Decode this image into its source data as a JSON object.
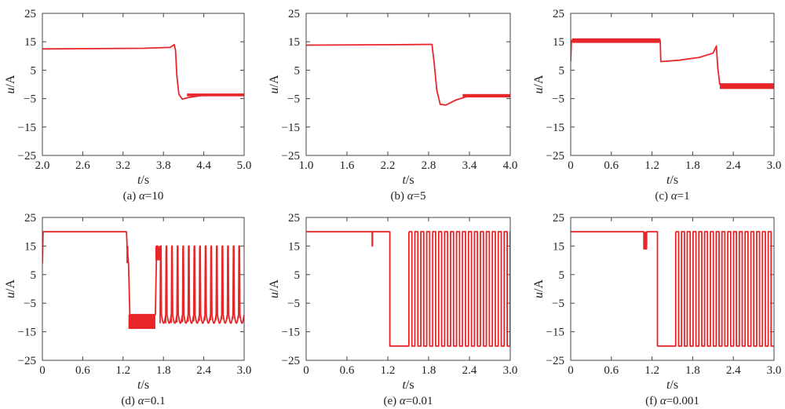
{
  "chart_data": [
    {
      "type": "line",
      "caption_prefix": "(a) ",
      "caption_greek": "α",
      "caption_suffix": "=10",
      "xlabel_var": "t",
      "xlabel_unit": "/s",
      "ylabel_var": "u",
      "ylabel_unit": "/A",
      "xlim": [
        2.0,
        5.0
      ],
      "ylim": [
        -25,
        25
      ],
      "xticks": [
        "2.0",
        "2.6",
        "3.2",
        "3.8",
        "4.4",
        "5.0"
      ],
      "yticks": [
        "25",
        "15",
        "5",
        "−5",
        "−15",
        "−25"
      ],
      "series_color": "#e8262a",
      "series": [
        {
          "x": [
            2.0,
            3.5,
            3.9,
            3.96,
            3.98,
            4.0,
            4.03,
            4.08,
            4.2,
            4.4,
            4.6,
            5.0
          ],
          "y": [
            12.5,
            12.7,
            13.0,
            14.0,
            12.0,
            3.0,
            -3.5,
            -5.2,
            -4.5,
            -3.8,
            -3.7,
            -3.6
          ]
        }
      ],
      "bands": [
        {
          "x0": 4.15,
          "x1": 5.0,
          "y0": -4.2,
          "y1": -3.2
        }
      ]
    },
    {
      "type": "line",
      "caption_prefix": "(b) ",
      "caption_greek": "α",
      "caption_suffix": "=5",
      "xlabel_var": "t",
      "xlabel_unit": "/s",
      "ylabel_var": "u",
      "ylabel_unit": "/A",
      "xlim": [
        1.0,
        4.0
      ],
      "ylim": [
        -25,
        25
      ],
      "xticks": [
        "1.0",
        "1.6",
        "2.2",
        "2.8",
        "3.4",
        "4.0"
      ],
      "yticks": [
        "25",
        "15",
        "5",
        "−5",
        "−15",
        "−25"
      ],
      "series_color": "#e8262a",
      "series": [
        {
          "x": [
            1.0,
            2.5,
            2.85,
            2.88,
            2.92,
            2.97,
            3.05,
            3.2,
            3.4,
            4.0
          ],
          "y": [
            13.8,
            14.0,
            14.1,
            8.0,
            -2.0,
            -7.0,
            -7.3,
            -5.5,
            -4.0,
            -4.0
          ]
        }
      ],
      "bands": [
        {
          "x0": 3.3,
          "x1": 4.0,
          "y0": -4.6,
          "y1": -3.4
        }
      ]
    },
    {
      "type": "line",
      "caption_prefix": "(c) ",
      "caption_greek": "α",
      "caption_suffix": "=1",
      "xlabel_var": "t",
      "xlabel_unit": "/s",
      "ylabel_var": "u",
      "ylabel_unit": "/A",
      "xlim": [
        0,
        3.0
      ],
      "ylim": [
        -25,
        25
      ],
      "xticks": [
        "0",
        "0.6",
        "1.2",
        "1.8",
        "2.4",
        "3.0"
      ],
      "yticks": [
        "25",
        "15",
        "5",
        "−5",
        "−15",
        "−25"
      ],
      "series_color": "#e8262a",
      "series": [
        {
          "x": [
            0,
            0.01,
            0.02,
            1.32,
            1.33,
            1.6,
            1.9,
            2.1,
            2.15,
            2.17,
            2.2,
            2.3,
            3.0
          ],
          "y": [
            8,
            15.5,
            15.5,
            15.5,
            8,
            8.5,
            9.5,
            11,
            13.5,
            6,
            0,
            -0.8,
            -0.8
          ]
        }
      ],
      "bands": [
        {
          "x0": 0.02,
          "x1": 1.32,
          "y0": 14.6,
          "y1": 16.2
        },
        {
          "x0": 2.2,
          "x1": 3.0,
          "y0": -1.6,
          "y1": 0.4
        }
      ]
    },
    {
      "type": "line",
      "caption_prefix": "(d) ",
      "caption_greek": "α",
      "caption_suffix": "=0.1",
      "xlabel_var": "t",
      "xlabel_unit": "/s",
      "ylabel_var": "u",
      "ylabel_unit": "/A",
      "xlim": [
        0,
        3.0
      ],
      "ylim": [
        -25,
        25
      ],
      "xticks": [
        "0",
        "0.6",
        "1.2",
        "1.8",
        "2.4",
        "3.0"
      ],
      "yticks": [
        "25",
        "15",
        "5",
        "−5",
        "−15",
        "−25"
      ],
      "series_color": "#e8262a",
      "series": [
        {
          "x": [
            0,
            0.01,
            1.25,
            1.26,
            1.28,
            1.3,
            1.68,
            1.7,
            1.72
          ],
          "y": [
            9,
            20,
            20,
            15,
            9,
            -9,
            -9,
            15,
            15
          ]
        }
      ],
      "bands": [
        {
          "x0": 1.25,
          "x1": 1.28,
          "y0": 9,
          "y1": 15
        },
        {
          "x0": 1.28,
          "x1": 1.68,
          "y0": -14,
          "y1": -9
        },
        {
          "x0": 1.68,
          "x1": 1.75,
          "y0": 10,
          "y1": 15
        }
      ],
      "osc": {
        "x0": 1.75,
        "x1": 3.0,
        "period": 0.0833,
        "hi": 15,
        "lo": -12
      }
    },
    {
      "type": "line",
      "caption_prefix": "(e) ",
      "caption_greek": "α",
      "caption_suffix": "=0.01",
      "xlabel_var": "t",
      "xlabel_unit": "/s",
      "ylabel_var": "u",
      "ylabel_unit": "/A",
      "xlim": [
        0,
        3.0
      ],
      "ylim": [
        -25,
        25
      ],
      "xticks": [
        "0",
        "0.6",
        "1.2",
        "1.8",
        "2.4",
        "3.0"
      ],
      "yticks": [
        "25",
        "15",
        "5",
        "−5",
        "−15",
        "−25"
      ],
      "series_color": "#e8262a",
      "series": [
        {
          "x": [
            0,
            0.97,
            0.97,
            0.975,
            0.975,
            1.23,
            1.23,
            1.51,
            1.51
          ],
          "y": [
            20,
            20,
            15,
            15,
            20,
            20,
            -20,
            -20,
            20
          ]
        }
      ],
      "bands": [],
      "square": {
        "x0": 1.51,
        "x1": 3.0,
        "period": 0.0876,
        "hi": 20,
        "lo": -20
      }
    },
    {
      "type": "line",
      "caption_prefix": "(f) ",
      "caption_greek": "α",
      "caption_suffix": "=0.001",
      "xlabel_var": "t",
      "xlabel_unit": "/s",
      "ylabel_var": "u",
      "ylabel_unit": "/A",
      "xlim": [
        0,
        3.0
      ],
      "ylim": [
        -25,
        25
      ],
      "xticks": [
        "0",
        "0.6",
        "1.2",
        "1.8",
        "2.4",
        "3.0"
      ],
      "yticks": [
        "25",
        "15",
        "5",
        "−5",
        "−15",
        "−25"
      ],
      "series_color": "#e8262a",
      "series": [
        {
          "x": [
            0,
            1.08,
            1.08,
            1.12,
            1.12,
            1.28,
            1.28,
            1.55,
            1.55
          ],
          "y": [
            20,
            20,
            14,
            14,
            20,
            20,
            -20,
            -20,
            20
          ]
        }
      ],
      "bands": [
        {
          "x0": 1.08,
          "x1": 1.12,
          "y0": 14,
          "y1": 20
        }
      ],
      "square": {
        "x0": 1.55,
        "x1": 3.0,
        "period": 0.0853,
        "hi": 20,
        "lo": -20
      }
    }
  ]
}
